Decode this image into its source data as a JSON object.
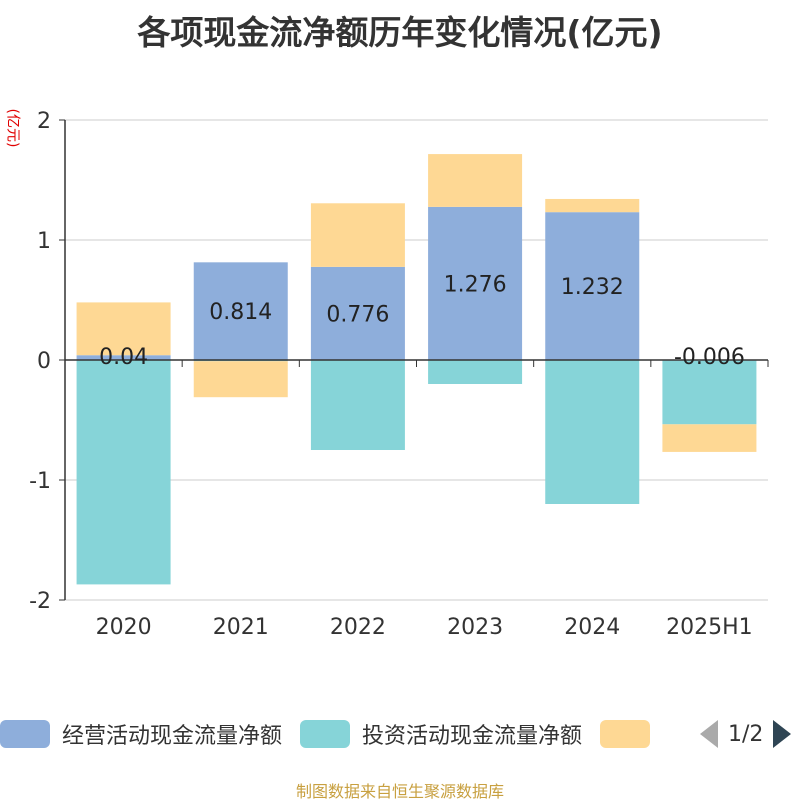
{
  "title": "各项现金流净额历年变化情况(亿元)",
  "unit_label": "(亿元)",
  "source": "制图数据来自恒生聚源数据库",
  "legend": {
    "items": [
      {
        "label": "经营活动现金流量净额",
        "color": "#8eaedb"
      },
      {
        "label": "投资活动现金流量净额",
        "color": "#86d4d8"
      },
      {
        "label": "",
        "color": "#fed894"
      }
    ],
    "page": "1/2"
  },
  "chart_data": {
    "type": "bar",
    "stacked": true,
    "categories": [
      "2020",
      "2021",
      "2022",
      "2023",
      "2024",
      "2025H1"
    ],
    "series": [
      {
        "name": "经营活动现金流量净额",
        "color": "#8eaedb",
        "values": [
          0.04,
          0.814,
          0.776,
          1.276,
          1.232,
          -0.006
        ],
        "labels": [
          "0.04",
          "0.814",
          "0.776",
          "1.276",
          "1.232",
          "-0.006"
        ]
      },
      {
        "name": "投资活动现金流量净额",
        "color": "#86d4d8",
        "values": [
          -1.87,
          -0.01,
          -0.75,
          -0.2,
          -1.2,
          -0.53
        ]
      },
      {
        "color": "#fed894",
        "values": [
          0.44,
          -0.3,
          0.53,
          0.44,
          0.11,
          -0.23
        ]
      }
    ],
    "yticks": [
      2,
      1,
      0,
      -1,
      -2
    ],
    "ylim": [
      -2,
      2
    ],
    "grid": true,
    "legend_position": "bottom"
  }
}
